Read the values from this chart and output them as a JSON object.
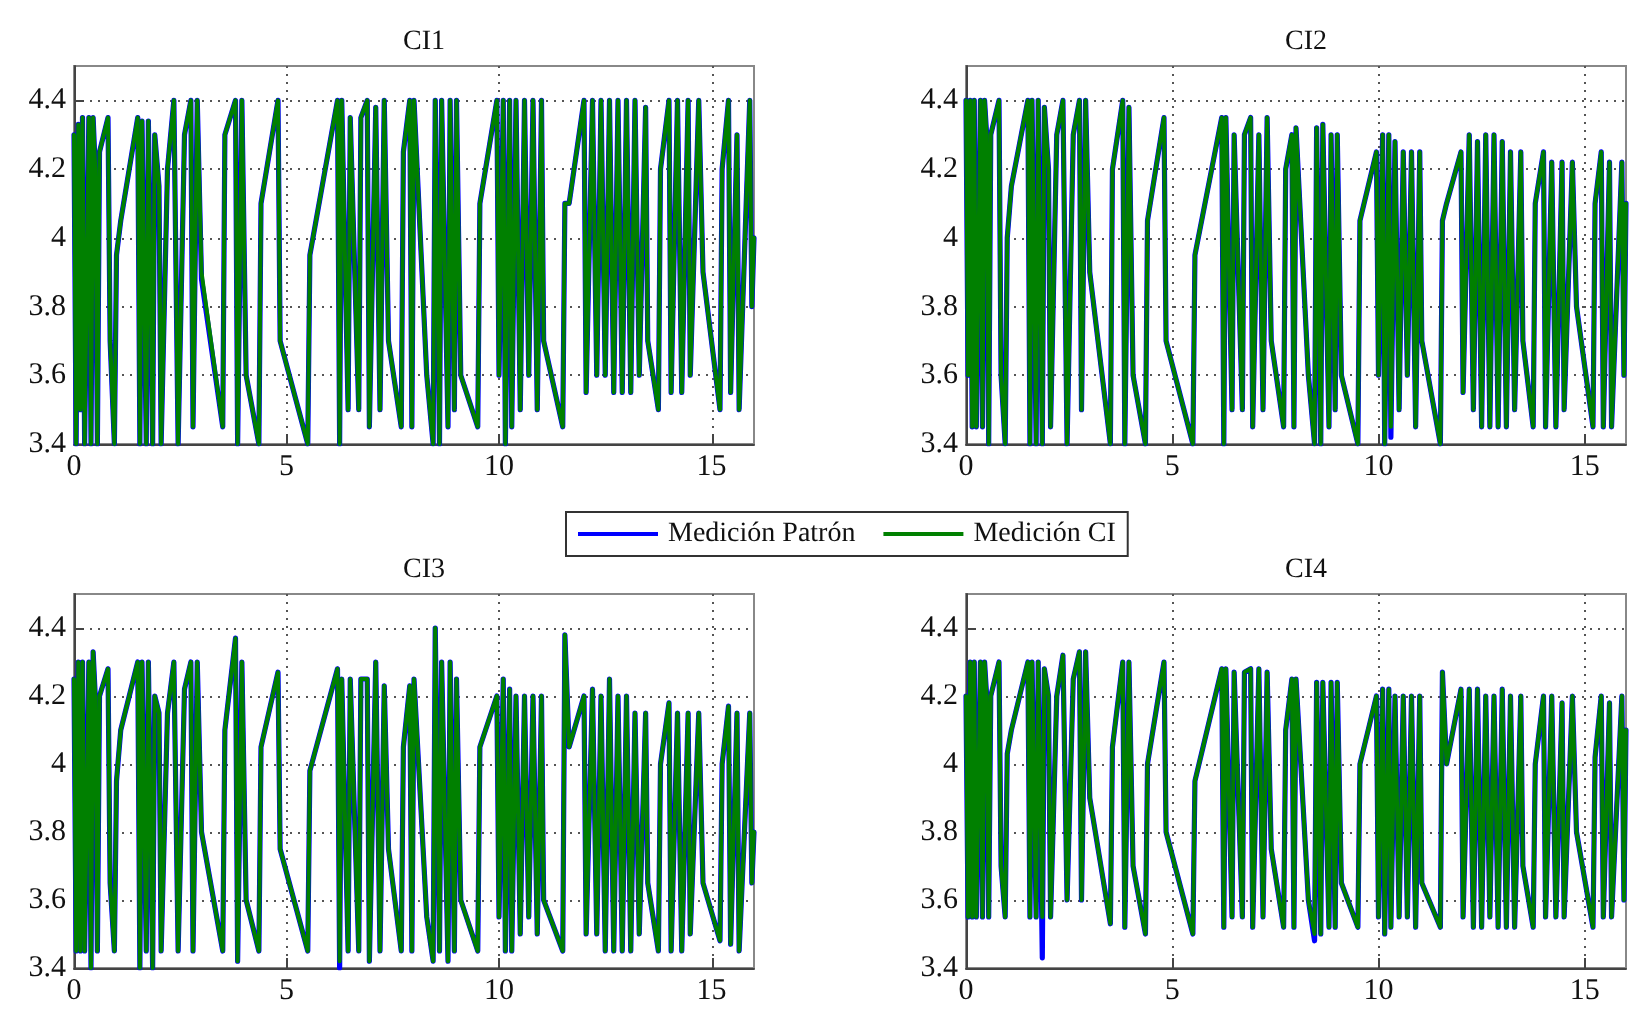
{
  "chart_data": [
    {
      "type": "line",
      "title": "CI1",
      "xlim": [
        0,
        16
      ],
      "xticks": [
        0,
        5,
        10,
        15
      ],
      "ylim": [
        3.4,
        4.5
      ],
      "yticks": [
        3.4,
        3.6,
        3.8,
        4,
        4.2,
        4.4
      ],
      "grid": true,
      "marker": "none",
      "line_style": "solid",
      "x": [
        0,
        0.05,
        0.1,
        0.15,
        0.2,
        0.25,
        0.35,
        0.4,
        0.45,
        0.5,
        0.55,
        0.6,
        0.8,
        0.85,
        0.95,
        1.0,
        1.1,
        1.5,
        1.55,
        1.6,
        1.7,
        1.75,
        1.85,
        1.9,
        2.0,
        2.05,
        2.2,
        2.35,
        2.45,
        2.6,
        2.75,
        2.8,
        2.9,
        3.0,
        3.5,
        3.55,
        3.8,
        3.85,
        3.95,
        4.05,
        4.35,
        4.4,
        4.8,
        4.85,
        5.5,
        5.55,
        6.2,
        6.25,
        6.3,
        6.45,
        6.5,
        6.7,
        6.75,
        6.9,
        6.95,
        7.1,
        7.2,
        7.3,
        7.4,
        7.7,
        7.75,
        7.9,
        7.95,
        8.0,
        8.3,
        8.45,
        8.5,
        8.6,
        8.65,
        8.8,
        8.85,
        8.95,
        9.0,
        9.1,
        9.5,
        9.55,
        9.95,
        10.0,
        10.1,
        10.15,
        10.25,
        10.3,
        10.4,
        10.5,
        10.6,
        10.7,
        10.8,
        10.9,
        11.0,
        11.05,
        11.5,
        11.55,
        11.65,
        12.0,
        12.05,
        12.2,
        12.3,
        12.4,
        12.5,
        12.6,
        12.7,
        12.8,
        12.9,
        13.0,
        13.1,
        13.2,
        13.3,
        13.45,
        13.5,
        13.75,
        13.8,
        14.0,
        14.05,
        14.2,
        14.3,
        14.45,
        14.5,
        14.7,
        14.8,
        15.2,
        15.25,
        15.4,
        15.45,
        15.6,
        15.65,
        15.9,
        15.95,
        16
      ],
      "series": [
        {
          "color": "#0000ff",
          "values": [
            4.3,
            3.4,
            4.33,
            3.5,
            4.35,
            3.4,
            4.35,
            3.4,
            4.35,
            4.2,
            3.4,
            4.25,
            4.35,
            3.7,
            3.4,
            3.95,
            4.05,
            4.35,
            3.4,
            4.34,
            3.4,
            4.34,
            3.4,
            4.3,
            4.15,
            3.4,
            4.2,
            4.4,
            3.4,
            4.3,
            4.4,
            3.45,
            4.4,
            3.88,
            3.45,
            4.3,
            4.4,
            3.4,
            4.4,
            3.6,
            3.4,
            4.1,
            4.4,
            3.7,
            3.4,
            3.95,
            4.4,
            3.4,
            4.4,
            3.5,
            4.35,
            3.5,
            4.35,
            4.4,
            3.45,
            4.38,
            3.5,
            4.4,
            3.7,
            3.45,
            4.25,
            4.4,
            3.45,
            4.4,
            3.6,
            3.4,
            4.4,
            3.4,
            4.4,
            3.45,
            4.4,
            3.5,
            4.4,
            3.6,
            3.45,
            4.1,
            4.4,
            3.6,
            4.4,
            3.4,
            4.4,
            3.45,
            4.4,
            3.5,
            4.4,
            3.6,
            4.4,
            3.5,
            4.4,
            3.7,
            3.45,
            4.1,
            4.1,
            4.4,
            3.55,
            4.4,
            3.6,
            4.4,
            3.6,
            4.4,
            3.55,
            4.4,
            3.55,
            4.4,
            3.55,
            4.4,
            3.6,
            4.38,
            3.7,
            3.5,
            4.2,
            4.4,
            3.55,
            4.4,
            3.55,
            4.4,
            3.6,
            4.4,
            3.9,
            3.5,
            4.2,
            4.4,
            3.55,
            4.3,
            3.5,
            4.4,
            3.8,
            4.0
          ]
        },
        {
          "color": "#008000",
          "values": [
            4.3,
            3.4,
            4.33,
            3.5,
            4.35,
            3.4,
            4.35,
            3.4,
            4.35,
            4.2,
            3.4,
            4.25,
            4.35,
            3.7,
            3.4,
            3.95,
            4.05,
            4.35,
            3.4,
            4.34,
            3.4,
            4.34,
            3.4,
            4.3,
            4.15,
            3.4,
            4.2,
            4.4,
            3.4,
            4.3,
            4.4,
            3.45,
            4.4,
            3.9,
            3.45,
            4.3,
            4.4,
            3.4,
            4.4,
            3.6,
            3.4,
            4.1,
            4.4,
            3.7,
            3.4,
            3.95,
            4.4,
            3.4,
            4.4,
            3.5,
            4.35,
            3.5,
            4.35,
            4.4,
            3.45,
            4.38,
            3.5,
            4.4,
            3.7,
            3.45,
            4.25,
            4.4,
            3.45,
            4.4,
            3.6,
            3.4,
            4.4,
            3.4,
            4.4,
            3.45,
            4.4,
            3.5,
            4.4,
            3.6,
            3.45,
            4.1,
            4.4,
            3.6,
            4.4,
            3.4,
            4.4,
            3.45,
            4.4,
            3.5,
            4.4,
            3.6,
            4.4,
            3.5,
            4.4,
            3.7,
            3.45,
            4.1,
            4.1,
            4.4,
            3.55,
            4.4,
            3.6,
            4.4,
            3.6,
            4.4,
            3.55,
            4.4,
            3.55,
            4.4,
            3.55,
            4.4,
            3.6,
            4.38,
            3.7,
            3.5,
            4.2,
            4.4,
            3.55,
            4.4,
            3.55,
            4.4,
            3.6,
            4.4,
            3.9,
            3.5,
            4.2,
            4.4,
            3.55,
            4.3,
            3.5,
            4.4,
            3.8,
            4.0
          ]
        }
      ]
    },
    {
      "type": "line",
      "title": "CI2",
      "xlim": [
        0,
        16
      ],
      "xticks": [
        0,
        5,
        10,
        15
      ],
      "ylim": [
        3.4,
        4.5
      ],
      "yticks": [
        3.4,
        3.6,
        3.8,
        4,
        4.2,
        4.4
      ],
      "grid": true,
      "marker": "none",
      "line_style": "solid",
      "x": [
        0,
        0.05,
        0.1,
        0.15,
        0.2,
        0.25,
        0.35,
        0.4,
        0.45,
        0.5,
        0.55,
        0.6,
        0.8,
        0.85,
        0.95,
        1.0,
        1.1,
        1.5,
        1.55,
        1.6,
        1.7,
        1.75,
        1.85,
        1.9,
        2.0,
        2.05,
        2.2,
        2.35,
        2.45,
        2.6,
        2.75,
        2.8,
        2.9,
        3.0,
        3.5,
        3.55,
        3.8,
        3.85,
        3.95,
        4.05,
        4.35,
        4.4,
        4.8,
        4.85,
        5.5,
        5.55,
        6.2,
        6.25,
        6.3,
        6.45,
        6.5,
        6.7,
        6.75,
        6.9,
        6.95,
        7.1,
        7.2,
        7.3,
        7.4,
        7.7,
        7.75,
        7.9,
        7.95,
        8.0,
        8.3,
        8.45,
        8.5,
        8.6,
        8.65,
        8.8,
        8.85,
        8.95,
        9.0,
        9.1,
        9.5,
        9.55,
        9.95,
        10.0,
        10.1,
        10.15,
        10.25,
        10.3,
        10.4,
        10.5,
        10.6,
        10.7,
        10.8,
        10.9,
        11.0,
        11.05,
        11.5,
        11.55,
        11.65,
        12.0,
        12.05,
        12.2,
        12.3,
        12.4,
        12.5,
        12.6,
        12.7,
        12.8,
        12.9,
        13.0,
        13.1,
        13.2,
        13.3,
        13.45,
        13.5,
        13.75,
        13.8,
        14.0,
        14.05,
        14.2,
        14.3,
        14.45,
        14.5,
        14.7,
        14.8,
        15.2,
        15.25,
        15.4,
        15.45,
        15.6,
        15.65,
        15.9,
        15.95,
        16
      ],
      "series": [
        {
          "color": "#0000ff",
          "values": [
            4.4,
            3.6,
            4.4,
            3.45,
            4.4,
            3.45,
            4.4,
            3.45,
            4.4,
            4.3,
            3.4,
            4.3,
            4.4,
            3.6,
            3.4,
            4.0,
            4.15,
            4.4,
            3.4,
            4.4,
            3.4,
            4.4,
            3.4,
            4.38,
            4.2,
            3.45,
            4.3,
            4.4,
            3.4,
            4.3,
            4.4,
            3.5,
            4.4,
            3.9,
            3.4,
            4.2,
            4.4,
            3.4,
            4.38,
            3.6,
            3.4,
            4.05,
            4.35,
            3.7,
            3.4,
            3.95,
            4.35,
            3.4,
            4.35,
            3.5,
            4.3,
            3.5,
            4.3,
            4.35,
            3.45,
            4.3,
            3.5,
            4.35,
            3.7,
            3.45,
            4.2,
            4.3,
            3.45,
            4.32,
            3.6,
            3.4,
            4.32,
            3.4,
            4.33,
            3.45,
            4.3,
            3.5,
            4.3,
            3.6,
            3.4,
            4.05,
            4.25,
            3.6,
            4.3,
            3.4,
            4.3,
            3.42,
            4.28,
            3.5,
            4.25,
            3.6,
            4.25,
            3.45,
            4.25,
            3.7,
            3.4,
            4.05,
            4.1,
            4.25,
            3.55,
            4.3,
            3.5,
            4.28,
            3.45,
            4.3,
            3.45,
            4.3,
            3.45,
            4.28,
            3.45,
            4.25,
            3.5,
            4.25,
            3.7,
            3.45,
            4.1,
            4.25,
            3.45,
            4.22,
            3.45,
            4.22,
            3.5,
            4.22,
            3.8,
            3.45,
            4.1,
            4.25,
            3.45,
            4.22,
            3.45,
            4.22,
            3.6,
            4.1
          ]
        },
        {
          "color": "#008000",
          "values": [
            4.4,
            3.6,
            4.4,
            3.45,
            4.4,
            3.45,
            4.4,
            3.45,
            4.4,
            4.3,
            3.4,
            4.3,
            4.4,
            3.6,
            3.4,
            4.0,
            4.15,
            4.4,
            3.4,
            4.4,
            3.4,
            4.4,
            3.4,
            4.38,
            4.2,
            3.45,
            4.3,
            4.4,
            3.4,
            4.3,
            4.4,
            3.5,
            4.4,
            3.9,
            3.4,
            4.2,
            4.4,
            3.4,
            4.38,
            3.6,
            3.4,
            4.05,
            4.35,
            3.7,
            3.4,
            3.95,
            4.35,
            3.4,
            4.35,
            3.5,
            4.3,
            3.5,
            4.3,
            4.35,
            3.45,
            4.3,
            3.5,
            4.35,
            3.7,
            3.45,
            4.2,
            4.3,
            3.45,
            4.32,
            3.6,
            3.4,
            4.32,
            3.4,
            4.33,
            3.45,
            4.3,
            3.5,
            4.3,
            3.6,
            3.4,
            4.05,
            4.25,
            3.6,
            4.3,
            3.4,
            4.3,
            3.45,
            4.28,
            3.5,
            4.25,
            3.6,
            4.25,
            3.45,
            4.25,
            3.7,
            3.4,
            4.05,
            4.1,
            4.25,
            3.55,
            4.3,
            3.5,
            4.28,
            3.45,
            4.3,
            3.45,
            4.3,
            3.45,
            4.28,
            3.45,
            4.25,
            3.5,
            4.25,
            3.7,
            3.45,
            4.1,
            4.25,
            3.45,
            4.22,
            3.45,
            4.22,
            3.5,
            4.22,
            3.8,
            3.45,
            4.1,
            4.25,
            3.45,
            4.22,
            3.45,
            4.22,
            3.6,
            4.1
          ]
        }
      ]
    },
    {
      "type": "line",
      "title": "CI3",
      "xlim": [
        0,
        16
      ],
      "xticks": [
        0,
        5,
        10,
        15
      ],
      "ylim": [
        3.4,
        4.5
      ],
      "yticks": [
        3.4,
        3.6,
        3.8,
        4,
        4.2,
        4.4
      ],
      "grid": true,
      "marker": "none",
      "line_style": "solid",
      "legend": "top",
      "x": [
        0,
        0.05,
        0.1,
        0.15,
        0.2,
        0.25,
        0.35,
        0.4,
        0.45,
        0.5,
        0.55,
        0.6,
        0.8,
        0.85,
        0.95,
        1.0,
        1.1,
        1.5,
        1.55,
        1.6,
        1.7,
        1.75,
        1.85,
        1.9,
        2.0,
        2.05,
        2.2,
        2.35,
        2.45,
        2.6,
        2.75,
        2.8,
        2.9,
        3.0,
        3.5,
        3.55,
        3.8,
        3.85,
        3.95,
        4.05,
        4.35,
        4.4,
        4.8,
        4.85,
        5.5,
        5.55,
        6.2,
        6.25,
        6.3,
        6.45,
        6.5,
        6.7,
        6.75,
        6.9,
        6.95,
        7.1,
        7.2,
        7.3,
        7.4,
        7.7,
        7.75,
        7.9,
        7.95,
        8.0,
        8.3,
        8.45,
        8.5,
        8.6,
        8.65,
        8.8,
        8.85,
        8.95,
        9.0,
        9.1,
        9.5,
        9.55,
        9.95,
        10.0,
        10.1,
        10.15,
        10.25,
        10.3,
        10.4,
        10.5,
        10.6,
        10.7,
        10.8,
        10.9,
        11.0,
        11.05,
        11.5,
        11.55,
        11.65,
        12.0,
        12.05,
        12.2,
        12.3,
        12.4,
        12.5,
        12.6,
        12.7,
        12.8,
        12.9,
        13.0,
        13.1,
        13.2,
        13.3,
        13.45,
        13.5,
        13.75,
        13.8,
        14.0,
        14.05,
        14.2,
        14.3,
        14.45,
        14.5,
        14.7,
        14.8,
        15.2,
        15.25,
        15.4,
        15.45,
        15.6,
        15.65,
        15.9,
        15.95,
        16
      ],
      "series": [
        {
          "name": "Medición Patrón",
          "color": "#0000ff",
          "values": [
            4.25,
            3.45,
            4.3,
            3.45,
            4.3,
            3.45,
            4.3,
            3.4,
            4.33,
            4.2,
            3.45,
            4.2,
            4.28,
            3.65,
            3.45,
            3.95,
            4.1,
            4.3,
            3.4,
            4.3,
            3.45,
            4.3,
            3.4,
            4.2,
            4.15,
            3.45,
            4.15,
            4.3,
            3.45,
            4.22,
            4.3,
            3.45,
            4.3,
            3.8,
            3.45,
            4.1,
            4.37,
            3.42,
            4.3,
            3.6,
            3.45,
            4.05,
            4.27,
            3.75,
            3.45,
            3.98,
            4.28,
            3.4,
            4.25,
            3.45,
            4.25,
            3.45,
            4.25,
            4.25,
            3.42,
            4.3,
            3.45,
            4.23,
            3.75,
            3.45,
            4.05,
            4.23,
            3.45,
            4.25,
            3.55,
            3.42,
            4.4,
            3.45,
            4.3,
            3.42,
            4.3,
            3.45,
            4.25,
            3.6,
            3.45,
            4.05,
            4.2,
            3.55,
            4.25,
            3.45,
            4.22,
            3.45,
            4.2,
            3.5,
            4.2,
            3.55,
            4.2,
            3.5,
            4.2,
            3.6,
            3.45,
            4.38,
            4.05,
            4.2,
            3.5,
            4.22,
            3.5,
            4.2,
            3.45,
            4.25,
            3.45,
            4.2,
            3.45,
            4.2,
            3.45,
            4.15,
            3.5,
            4.15,
            3.65,
            3.45,
            4.0,
            4.18,
            3.45,
            4.15,
            3.45,
            4.15,
            3.5,
            4.15,
            3.65,
            3.48,
            4.0,
            4.17,
            3.47,
            4.15,
            3.45,
            4.15,
            3.65,
            3.8
          ]
        },
        {
          "name": "Medición CI",
          "color": "#008000",
          "values": [
            4.25,
            3.45,
            4.3,
            3.45,
            4.3,
            3.45,
            4.3,
            3.4,
            4.33,
            4.2,
            3.45,
            4.2,
            4.28,
            3.65,
            3.45,
            3.95,
            4.1,
            4.3,
            3.4,
            4.3,
            3.45,
            4.3,
            3.4,
            4.2,
            4.15,
            3.45,
            4.15,
            4.3,
            3.45,
            4.22,
            4.3,
            3.45,
            4.3,
            3.8,
            3.45,
            4.1,
            4.37,
            3.42,
            4.3,
            3.6,
            3.45,
            4.05,
            4.27,
            3.75,
            3.45,
            3.98,
            4.28,
            3.42,
            4.25,
            3.45,
            4.25,
            3.45,
            4.25,
            4.25,
            3.42,
            4.3,
            3.45,
            4.23,
            3.75,
            3.45,
            4.05,
            4.23,
            3.45,
            4.25,
            3.55,
            3.42,
            4.4,
            3.45,
            4.3,
            3.42,
            4.3,
            3.45,
            4.25,
            3.6,
            3.45,
            4.05,
            4.2,
            3.55,
            4.25,
            3.45,
            4.22,
            3.45,
            4.2,
            3.5,
            4.2,
            3.55,
            4.2,
            3.5,
            4.2,
            3.6,
            3.45,
            4.38,
            4.05,
            4.2,
            3.5,
            4.22,
            3.5,
            4.2,
            3.45,
            4.25,
            3.45,
            4.2,
            3.45,
            4.2,
            3.45,
            4.15,
            3.5,
            4.15,
            3.65,
            3.45,
            4.0,
            4.18,
            3.45,
            4.15,
            3.45,
            4.15,
            3.5,
            4.15,
            3.65,
            3.48,
            4.0,
            4.17,
            3.47,
            4.15,
            3.45,
            4.15,
            3.65,
            3.8
          ]
        }
      ]
    },
    {
      "type": "line",
      "title": "CI4",
      "xlim": [
        0,
        16
      ],
      "xticks": [
        0,
        5,
        10,
        15
      ],
      "ylim": [
        3.4,
        4.5
      ],
      "yticks": [
        3.4,
        3.6,
        3.8,
        4,
        4.2,
        4.4
      ],
      "grid": true,
      "marker": "none",
      "line_style": "solid",
      "x": [
        0,
        0.05,
        0.1,
        0.15,
        0.2,
        0.25,
        0.35,
        0.4,
        0.45,
        0.5,
        0.55,
        0.6,
        0.8,
        0.85,
        0.95,
        1.0,
        1.1,
        1.5,
        1.55,
        1.6,
        1.7,
        1.75,
        1.85,
        1.9,
        2.0,
        2.05,
        2.2,
        2.35,
        2.45,
        2.6,
        2.75,
        2.8,
        2.9,
        3.0,
        3.5,
        3.55,
        3.8,
        3.85,
        3.95,
        4.05,
        4.35,
        4.4,
        4.8,
        4.85,
        5.5,
        5.55,
        6.2,
        6.25,
        6.3,
        6.45,
        6.5,
        6.7,
        6.75,
        6.9,
        6.95,
        7.1,
        7.2,
        7.3,
        7.4,
        7.7,
        7.75,
        7.9,
        7.95,
        8.0,
        8.3,
        8.45,
        8.5,
        8.6,
        8.65,
        8.8,
        8.85,
        8.95,
        9.0,
        9.1,
        9.5,
        9.55,
        9.95,
        10.0,
        10.1,
        10.15,
        10.25,
        10.3,
        10.4,
        10.5,
        10.6,
        10.7,
        10.8,
        10.9,
        11.0,
        11.05,
        11.5,
        11.55,
        11.65,
        12.0,
        12.05,
        12.2,
        12.3,
        12.4,
        12.5,
        12.6,
        12.7,
        12.8,
        12.9,
        13.0,
        13.1,
        13.2,
        13.3,
        13.45,
        13.5,
        13.75,
        13.8,
        14.0,
        14.05,
        14.2,
        14.3,
        14.45,
        14.5,
        14.7,
        14.8,
        15.2,
        15.25,
        15.4,
        15.45,
        15.6,
        15.65,
        15.9,
        15.95,
        16
      ],
      "series": [
        {
          "color": "#0000ff",
          "values": [
            4.2,
            3.55,
            4.3,
            3.55,
            4.3,
            3.55,
            4.3,
            3.55,
            4.3,
            4.2,
            3.55,
            4.2,
            4.3,
            3.7,
            3.55,
            4.03,
            4.1,
            4.3,
            3.55,
            4.3,
            3.55,
            4.3,
            3.43,
            4.28,
            4.2,
            3.55,
            4.2,
            4.32,
            3.6,
            4.25,
            4.33,
            3.6,
            4.33,
            3.9,
            3.53,
            4.05,
            4.3,
            3.52,
            4.3,
            3.7,
            3.5,
            4.0,
            4.3,
            3.8,
            3.5,
            3.95,
            4.28,
            3.52,
            4.28,
            3.55,
            4.27,
            3.55,
            4.27,
            4.28,
            3.52,
            4.28,
            3.55,
            4.27,
            3.75,
            3.52,
            4.1,
            4.25,
            3.52,
            4.25,
            3.6,
            3.48,
            4.24,
            3.5,
            4.24,
            3.52,
            4.24,
            3.52,
            4.24,
            3.65,
            3.52,
            4.0,
            4.2,
            3.55,
            4.22,
            3.5,
            4.22,
            3.52,
            4.2,
            3.55,
            4.2,
            3.55,
            4.2,
            3.52,
            4.2,
            3.65,
            3.52,
            4.27,
            4.0,
            4.22,
            3.55,
            4.22,
            3.52,
            4.22,
            3.52,
            4.2,
            3.55,
            4.2,
            3.52,
            4.22,
            3.52,
            4.2,
            3.52,
            4.2,
            3.7,
            3.52,
            4.0,
            4.2,
            3.55,
            4.2,
            3.55,
            4.18,
            3.55,
            4.2,
            3.8,
            3.52,
            4.02,
            4.2,
            3.55,
            4.18,
            3.55,
            4.2,
            3.6,
            4.1
          ]
        },
        {
          "color": "#008000",
          "values": [
            4.2,
            3.55,
            4.3,
            3.55,
            4.3,
            3.55,
            4.3,
            3.55,
            4.3,
            4.2,
            3.55,
            4.2,
            4.3,
            3.7,
            3.55,
            4.03,
            4.1,
            4.3,
            3.55,
            4.3,
            3.55,
            4.3,
            3.55,
            4.28,
            4.2,
            3.55,
            4.2,
            4.32,
            3.6,
            4.25,
            4.33,
            3.6,
            4.33,
            3.9,
            3.53,
            4.05,
            4.3,
            3.52,
            4.3,
            3.7,
            3.5,
            4.0,
            4.3,
            3.8,
            3.5,
            3.95,
            4.28,
            3.52,
            4.28,
            3.55,
            4.27,
            3.55,
            4.27,
            4.28,
            3.52,
            4.28,
            3.55,
            4.27,
            3.75,
            3.52,
            4.1,
            4.25,
            3.52,
            4.25,
            3.6,
            3.5,
            4.24,
            3.5,
            4.24,
            3.52,
            4.24,
            3.52,
            4.24,
            3.65,
            3.52,
            4.0,
            4.2,
            3.55,
            4.22,
            3.5,
            4.22,
            3.52,
            4.2,
            3.55,
            4.2,
            3.55,
            4.2,
            3.52,
            4.2,
            3.65,
            3.52,
            4.27,
            4.0,
            4.22,
            3.55,
            4.22,
            3.52,
            4.22,
            3.52,
            4.2,
            3.55,
            4.2,
            3.52,
            4.22,
            3.52,
            4.2,
            3.52,
            4.2,
            3.7,
            3.52,
            4.0,
            4.2,
            3.55,
            4.2,
            3.55,
            4.18,
            3.55,
            4.2,
            3.8,
            3.52,
            4.02,
            4.2,
            3.55,
            4.18,
            3.55,
            4.2,
            3.6,
            4.1
          ]
        }
      ]
    }
  ]
}
